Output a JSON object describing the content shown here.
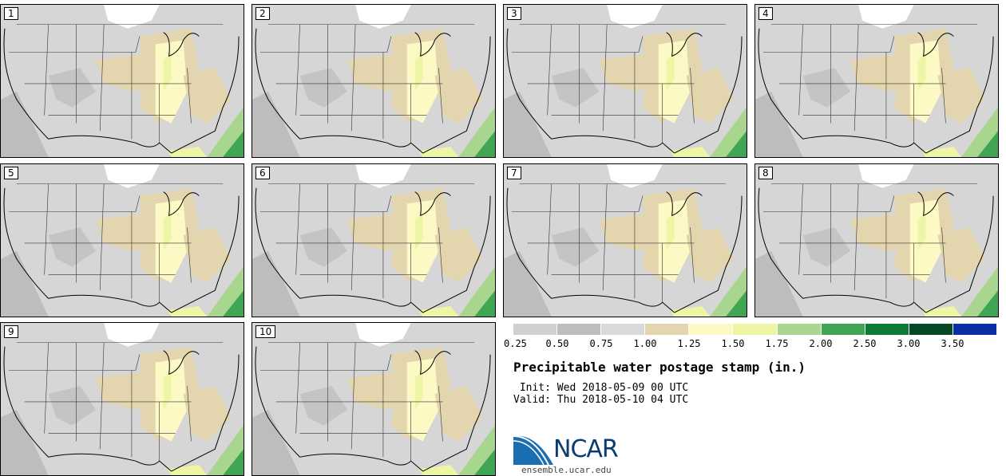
{
  "panels": [
    {
      "label": "1"
    },
    {
      "label": "2"
    },
    {
      "label": "3"
    },
    {
      "label": "4"
    },
    {
      "label": "5"
    },
    {
      "label": "6"
    },
    {
      "label": "7"
    },
    {
      "label": "8"
    },
    {
      "label": "9"
    },
    {
      "label": "10"
    }
  ],
  "legend": {
    "colors": [
      "#cfcfcf",
      "#bdbdbd",
      "#d9d9d9",
      "#e3d5ad",
      "#fcf9c4",
      "#eef5a4",
      "#a8d68e",
      "#41a556",
      "#0d7b35",
      "#054823",
      "#0a2ea6"
    ],
    "ticks": [
      "0.25",
      "0.50",
      "0.75",
      "1.00",
      "1.25",
      "1.50",
      "1.75",
      "2.00",
      "2.50",
      "3.00",
      "3.50"
    ]
  },
  "title": "Precipitable water postage stamp (in.)",
  "init": " Init: Wed 2018-05-09 00 UTC",
  "valid": "Valid: Thu 2018-05-10 04 UTC",
  "logo": {
    "text": "NCAR",
    "url": "ensemble.ucar.edu"
  }
}
